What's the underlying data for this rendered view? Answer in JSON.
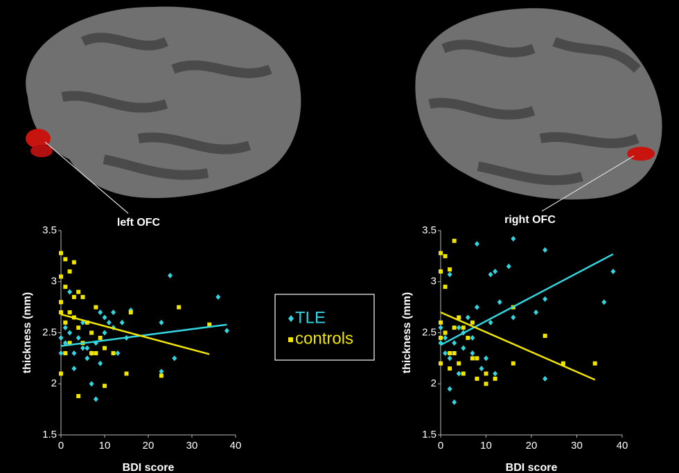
{
  "chart_data": [
    {
      "type": "scatter",
      "annotation": "left OFC",
      "xlabel": "BDI score",
      "ylabel": "thickness (mm)",
      "xlim": [
        0,
        40
      ],
      "ylim": [
        1.5,
        3.5
      ],
      "xticks": [
        0,
        10,
        20,
        30,
        40
      ],
      "yticks": [
        1.5,
        2,
        2.5,
        3,
        3.5
      ],
      "grid": false,
      "legend": "center",
      "series": [
        {
          "name": "TLE",
          "color": "#33d6e0",
          "marker": "diamond",
          "x": [
            0,
            0,
            1,
            1,
            2,
            2,
            3,
            3,
            4,
            5,
            5,
            6,
            6,
            7,
            7,
            8,
            8,
            9,
            9,
            10,
            10,
            11,
            12,
            12,
            13,
            14,
            15,
            16,
            23,
            23,
            25,
            26,
            36,
            38
          ],
          "values": [
            2.3,
            2.45,
            2.55,
            2.4,
            2.9,
            2.5,
            2.3,
            2.15,
            2.45,
            2.35,
            2.6,
            2.25,
            2.35,
            2.0,
            2.3,
            1.85,
            2.4,
            2.7,
            2.2,
            2.5,
            2.65,
            2.6,
            2.55,
            2.7,
            2.3,
            2.6,
            2.45,
            2.72,
            2.12,
            2.6,
            3.06,
            2.25,
            2.85,
            2.52
          ],
          "fit_x": [
            0,
            38
          ],
          "fit_y": [
            2.37,
            2.58
          ]
        },
        {
          "name": "controls",
          "color": "#f2e600",
          "marker": "square",
          "x": [
            0,
            0,
            0,
            0,
            0,
            1,
            1,
            1,
            1,
            2,
            2,
            2,
            3,
            3,
            3,
            4,
            4,
            4,
            5,
            5,
            6,
            7,
            7,
            8,
            8,
            9,
            10,
            10,
            12,
            15,
            16,
            23,
            27,
            34
          ],
          "values": [
            3.28,
            3.05,
            2.8,
            2.7,
            2.1,
            3.22,
            2.95,
            2.6,
            2.3,
            2.7,
            3.1,
            2.4,
            3.19,
            2.85,
            2.65,
            2.9,
            1.88,
            2.55,
            2.85,
            2.4,
            2.6,
            2.3,
            2.5,
            2.75,
            2.3,
            2.45,
            1.98,
            2.35,
            2.3,
            2.1,
            2.7,
            2.08,
            2.75,
            2.58
          ],
          "fit_x": [
            0,
            34
          ],
          "fit_y": [
            2.68,
            2.29
          ]
        }
      ]
    },
    {
      "type": "scatter",
      "annotation": "right OFC",
      "xlabel": "BDI score",
      "ylabel": "thickness (mm)",
      "xlim": [
        0,
        40
      ],
      "ylim": [
        1.5,
        3.5
      ],
      "xticks": [
        0,
        10,
        20,
        30,
        40
      ],
      "yticks": [
        1.5,
        2,
        2.5,
        3,
        3.5
      ],
      "grid": false,
      "series": [
        {
          "name": "TLE",
          "color": "#33d6e0",
          "marker": "diamond",
          "x": [
            0,
            0,
            1,
            1,
            2,
            2,
            2,
            3,
            3,
            4,
            4,
            5,
            5,
            6,
            7,
            7,
            8,
            8,
            9,
            10,
            11,
            11,
            12,
            12,
            13,
            15,
            16,
            16,
            21,
            23,
            23,
            23,
            36,
            38
          ],
          "values": [
            2.4,
            2.55,
            2.3,
            2.45,
            1.95,
            3.07,
            2.25,
            1.82,
            2.4,
            2.55,
            2.1,
            2.35,
            2.5,
            2.65,
            2.45,
            2.3,
            3.37,
            2.75,
            2.15,
            2.25,
            3.07,
            2.6,
            2.1,
            3.1,
            2.8,
            3.15,
            2.65,
            3.42,
            2.7,
            3.31,
            2.05,
            2.83,
            2.8,
            3.1
          ],
          "fit_x": [
            0,
            38
          ],
          "fit_y": [
            2.38,
            3.27
          ]
        },
        {
          "name": "controls",
          "color": "#f2e600",
          "marker": "square",
          "x": [
            0,
            0,
            0,
            0,
            0,
            1,
            1,
            1,
            2,
            2,
            2,
            3,
            3,
            3,
            4,
            4,
            5,
            5,
            6,
            7,
            7,
            8,
            8,
            10,
            10,
            12,
            16,
            16,
            23,
            27,
            34
          ],
          "values": [
            3.28,
            3.1,
            2.6,
            2.45,
            2.2,
            3.25,
            2.95,
            2.5,
            3.12,
            2.3,
            2.15,
            3.4,
            2.55,
            2.3,
            2.65,
            2.2,
            2.55,
            2.1,
            2.45,
            2.25,
            2.6,
            2.05,
            2.25,
            2.0,
            2.1,
            2.05,
            2.2,
            2.75,
            2.47,
            2.2,
            2.2
          ],
          "fit_x": [
            0,
            34
          ],
          "fit_y": [
            2.7,
            2.04
          ]
        }
      ]
    }
  ]
}
